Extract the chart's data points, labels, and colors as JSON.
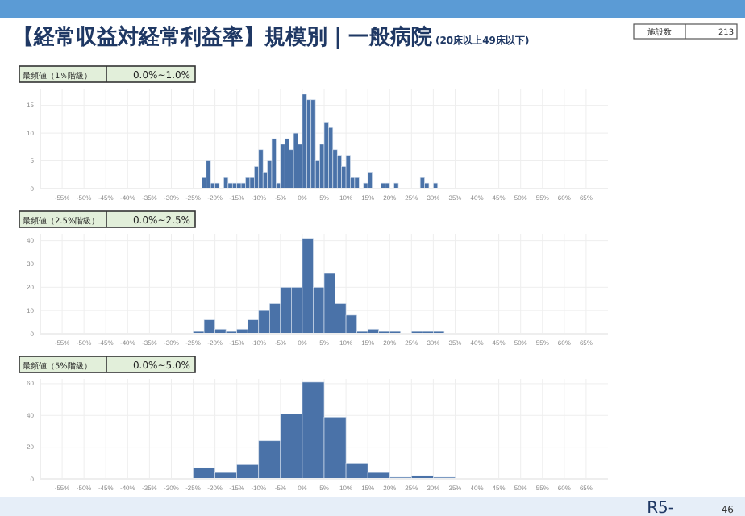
{
  "chart_data": [
    {
      "type": "histogram",
      "title": "【経常収益対経常利益率】規模別｜一般病院",
      "subtitle": "(20床以上49床以下)",
      "annotations": [
        "最頻値（1％階級）",
        "0.0%~1.0%",
        "施設数",
        "213"
      ],
      "bins": [
        -23,
        -22,
        -21,
        -20,
        -19,
        -18,
        -17,
        -16,
        -15,
        -14,
        -13,
        -12,
        -11,
        -10,
        -9,
        -8,
        -7,
        -6,
        -5,
        -4,
        -3,
        -2,
        -1,
        0,
        1,
        2,
        3,
        4,
        5,
        6,
        7,
        8,
        9,
        10,
        11,
        12,
        13,
        14,
        15,
        16,
        17,
        18,
        19,
        20,
        21,
        22,
        23,
        24,
        25,
        26,
        27,
        28,
        29,
        30,
        31
      ],
      "values": [
        2,
        5,
        1,
        1,
        0,
        2,
        1,
        1,
        1,
        1,
        2,
        2,
        4,
        7,
        3,
        5,
        9,
        1,
        8,
        9,
        7,
        10,
        8,
        17,
        16,
        16,
        5,
        8,
        12,
        11,
        7,
        6,
        4,
        6,
        2,
        2,
        0,
        1,
        3,
        0,
        0,
        1,
        1,
        0,
        1,
        0,
        0,
        0,
        0,
        0,
        2,
        1,
        0,
        1
      ],
      "color": "#4a72a8",
      "xlim": [
        -60,
        70
      ],
      "ylim": [
        0,
        18
      ],
      "xticks": [
        {
          "value": -55,
          "label": "-55%"
        },
        {
          "value": -50,
          "label": "-50%"
        },
        {
          "value": -45,
          "label": "-45%"
        },
        {
          "value": -40,
          "label": "-40%"
        },
        {
          "value": -35,
          "label": "-35%"
        },
        {
          "value": -30,
          "label": "-30%"
        },
        {
          "value": -25,
          "label": "-25%"
        },
        {
          "value": -20,
          "label": "-20%"
        },
        {
          "value": -15,
          "label": "-15%"
        },
        {
          "value": -10,
          "label": "-10%"
        },
        {
          "value": -5,
          "label": "-5%"
        },
        {
          "value": 0,
          "label": "0%"
        },
        {
          "value": 5,
          "label": "5%"
        },
        {
          "value": 10,
          "label": "10%"
        },
        {
          "value": 15,
          "label": "15%"
        },
        {
          "value": 20,
          "label": "20%"
        },
        {
          "value": 25,
          "label": "25%"
        },
        {
          "value": 30,
          "label": "30%"
        },
        {
          "value": 35,
          "label": "35%"
        },
        {
          "value": 40,
          "label": "40%"
        },
        {
          "value": 45,
          "label": "45%"
        },
        {
          "value": 50,
          "label": "50%"
        },
        {
          "value": 55,
          "label": "55%"
        },
        {
          "value": 60,
          "label": "60%"
        },
        {
          "value": 65,
          "label": "65%"
        }
      ],
      "yticks": [
        0,
        5,
        10,
        15
      ],
      "grid": true
    },
    {
      "type": "histogram",
      "annotations": [
        "最頻値（2.5%階級）",
        "0.0%~2.5%"
      ],
      "bins": [
        -25,
        -22.5,
        -20,
        -17.5,
        -15,
        -12.5,
        -10,
        -7.5,
        -5,
        -2.5,
        0,
        2.5,
        5,
        7.5,
        10,
        12.5,
        15,
        17.5,
        20,
        22.5,
        25,
        27.5,
        30,
        32.5
      ],
      "values": [
        1,
        6,
        2,
        1,
        2,
        6,
        10,
        13,
        20,
        20,
        41,
        20,
        26,
        13,
        8,
        1,
        2,
        1,
        1,
        0,
        1,
        1,
        1
      ],
      "color": "#4a72a8",
      "xlim": [
        -60,
        70
      ],
      "ylim": [
        0,
        43
      ],
      "xticks": [
        {
          "value": -55,
          "label": "-55%"
        },
        {
          "value": -50,
          "label": "-50%"
        },
        {
          "value": -45,
          "label": "-45%"
        },
        {
          "value": -40,
          "label": "-40%"
        },
        {
          "value": -35,
          "label": "-35%"
        },
        {
          "value": -30,
          "label": "-30%"
        },
        {
          "value": -25,
          "label": "-25%"
        },
        {
          "value": -20,
          "label": "-20%"
        },
        {
          "value": -15,
          "label": "-15%"
        },
        {
          "value": -10,
          "label": "-10%"
        },
        {
          "value": -5,
          "label": "-5%"
        },
        {
          "value": 0,
          "label": "0%"
        },
        {
          "value": 5,
          "label": "5%"
        },
        {
          "value": 10,
          "label": "10%"
        },
        {
          "value": 15,
          "label": "15%"
        },
        {
          "value": 20,
          "label": "20%"
        },
        {
          "value": 25,
          "label": "25%"
        },
        {
          "value": 30,
          "label": "30%"
        },
        {
          "value": 35,
          "label": "35%"
        },
        {
          "value": 40,
          "label": "40%"
        },
        {
          "value": 45,
          "label": "45%"
        },
        {
          "value": 50,
          "label": "50%"
        },
        {
          "value": 55,
          "label": "55%"
        },
        {
          "value": 60,
          "label": "60%"
        },
        {
          "value": 65,
          "label": "65%"
        }
      ],
      "yticks": [
        0,
        10,
        20,
        30,
        40
      ],
      "grid": true
    },
    {
      "type": "histogram",
      "annotations": [
        "最頻値（5%階級）",
        "0.0%~5.0%",
        "R5-",
        "46"
      ],
      "bins": [
        -25,
        -20,
        -15,
        -10,
        -5,
        0,
        5,
        10,
        15,
        20,
        25,
        30,
        35
      ],
      "values": [
        7,
        4,
        9,
        24,
        41,
        61,
        39,
        10,
        4,
        1,
        2,
        1
      ],
      "color": "#4a72a8",
      "xlim": [
        -60,
        70
      ],
      "ylim": [
        0,
        63
      ],
      "xticks": [
        {
          "value": -55,
          "label": "-55%"
        },
        {
          "value": -50,
          "label": "-50%"
        },
        {
          "value": -45,
          "label": "-45%"
        },
        {
          "value": -40,
          "label": "-40%"
        },
        {
          "value": -35,
          "label": "-35%"
        },
        {
          "value": -30,
          "label": "-30%"
        },
        {
          "value": -25,
          "label": "-25%"
        },
        {
          "value": -20,
          "label": "-20%"
        },
        {
          "value": -15,
          "label": "-15%"
        },
        {
          "value": -10,
          "label": "-10%"
        },
        {
          "value": -5,
          "label": "-5%"
        },
        {
          "value": 0,
          "label": "0%"
        },
        {
          "value": 5,
          "label": "5%"
        },
        {
          "value": 10,
          "label": "10%"
        },
        {
          "value": 15,
          "label": "15%"
        },
        {
          "value": 20,
          "label": "20%"
        },
        {
          "value": 25,
          "label": "25%"
        },
        {
          "value": 30,
          "label": "30%"
        },
        {
          "value": 35,
          "label": "35%"
        },
        {
          "value": 40,
          "label": "40%"
        },
        {
          "value": 45,
          "label": "45%"
        },
        {
          "value": 50,
          "label": "50%"
        },
        {
          "value": 55,
          "label": "55%"
        },
        {
          "value": 60,
          "label": "60%"
        },
        {
          "value": 65,
          "label": "65%"
        }
      ],
      "yticks": [
        0,
        20,
        40,
        60
      ],
      "grid": true
    }
  ]
}
